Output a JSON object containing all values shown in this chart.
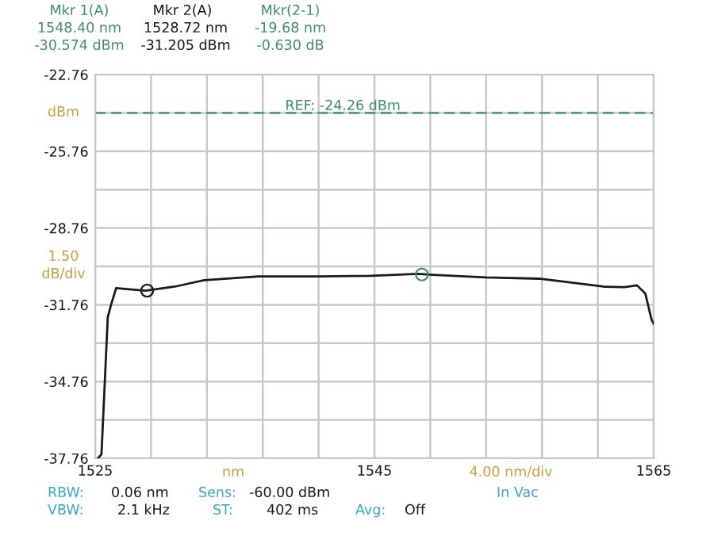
{
  "chart_data": {
    "type": "line",
    "x": [
      1525.2,
      1525.45,
      1525.9,
      1526.14,
      1526.5,
      1527.3,
      1528.6,
      1530.7,
      1532.8,
      1536.7,
      1540.9,
      1544.7,
      1548.1,
      1549.2,
      1553.0,
      1556.8,
      1561.4,
      1562.9,
      1563.8,
      1564.4,
      1564.85,
      1565.0
    ],
    "series": [
      {
        "color": "#1a1a1a",
        "values": [
          -37.76,
          -37.6,
          -32.25,
          -31.75,
          -31.11,
          -31.15,
          -31.21,
          -31.05,
          -30.8,
          -30.65,
          -30.65,
          -30.63,
          -30.55,
          -30.59,
          -30.69,
          -30.74,
          -31.05,
          -31.07,
          -31.0,
          -31.32,
          -32.35,
          -32.5
        ]
      },
      {
        "type": "scatter",
        "x": [
          1548.4,
          1528.72
        ],
        "colors": [
          "#3f8f6a",
          "#1a1a1a"
        ],
        "marker": "circle",
        "values": [
          -30.574,
          -31.205
        ]
      }
    ],
    "xlim": [
      1525,
      1565
    ],
    "xticks": [
      1525,
      {
        "value": 1529,
        "label": null
      },
      {
        "value": 1533,
        "label": null
      },
      {
        "value": 1537,
        "label": null
      },
      {
        "value": 1541,
        "label": null
      },
      1545,
      {
        "value": 1549,
        "label": null
      },
      {
        "value": 1553,
        "label": null
      },
      {
        "value": 1557,
        "label": null
      },
      {
        "value": 1561,
        "label": null
      },
      1565
    ],
    "ylim": [
      -37.76,
      -22.76
    ],
    "yticks": [
      {
        "value": -37.76,
        "label": "-37.76"
      },
      {
        "value": -36.26,
        "label": null
      },
      {
        "value": -34.76,
        "label": "-34.76"
      },
      {
        "value": -33.26,
        "label": null
      },
      {
        "value": -31.76,
        "label": "-31.76"
      },
      {
        "value": -30.26,
        "label": null
      },
      {
        "value": -28.76,
        "label": "-28.76"
      },
      {
        "value": -27.26,
        "label": null
      },
      {
        "value": -25.76,
        "label": "-25.76"
      },
      {
        "value": -24.26,
        "label": null
      },
      {
        "value": -22.76,
        "label": "-22.76"
      }
    ],
    "grid": true,
    "ref_lines": [
      {
        "axis": "y",
        "value": -24.26,
        "label": "REF: -24.26 dBm",
        "color": "#3f8f6a",
        "line_style": "dashed"
      }
    ],
    "annotations": [
      "Mkr 1(A)",
      "1548.40 nm",
      "-30.574 dBm",
      "Mkr 2(A)",
      "1528.72 nm",
      "-31.205 dBm",
      "Mkr(2-1)",
      "-19.68 nm",
      "-0.630 dB",
      "dBm",
      "1.50",
      "dB/div",
      "nm",
      "4.00 nm/div",
      "RBW:",
      "0.06 nm",
      "Sens:",
      "-60.00 dBm",
      "In Vac",
      "VBW:",
      "2.1 kHz",
      "ST:",
      "402 ms",
      "Avg:",
      "Off"
    ]
  }
}
